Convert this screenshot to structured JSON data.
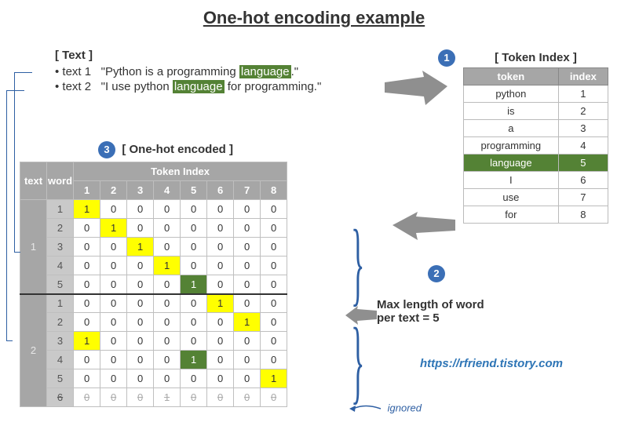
{
  "title": "One-hot encoding example",
  "text": {
    "heading": "[ Text ]",
    "line1_label": "text 1",
    "line1_pre": "\"Python is a programming ",
    "line1_hl": "language",
    "line1_post": ".\"",
    "line2_label": "text 2",
    "line2_pre": "\"I use python ",
    "line2_hl": "language",
    "line2_post": " for programming.\""
  },
  "steps": {
    "s1": "1",
    "s2": "2",
    "s3": "3"
  },
  "token_index": {
    "heading": "[ Token Index ]",
    "columns": [
      "token",
      "index"
    ],
    "rows": [
      {
        "token": "python",
        "index": "1",
        "hl": false
      },
      {
        "token": "is",
        "index": "2",
        "hl": false
      },
      {
        "token": "a",
        "index": "3",
        "hl": false
      },
      {
        "token": "programming",
        "index": "4",
        "hl": false
      },
      {
        "token": "language",
        "index": "5",
        "hl": true
      },
      {
        "token": "I",
        "index": "6",
        "hl": false
      },
      {
        "token": "use",
        "index": "7",
        "hl": false
      },
      {
        "token": "for",
        "index": "8",
        "hl": false
      }
    ]
  },
  "onehot": {
    "heading": "[ One-hot encoded ]",
    "colgroup_label": "Token Index",
    "row_headers": [
      "text",
      "word"
    ],
    "col_indices": [
      "1",
      "2",
      "3",
      "4",
      "5",
      "6",
      "7",
      "8"
    ],
    "groups": [
      {
        "text": "1",
        "rows": [
          {
            "word": "1",
            "vals": [
              "1",
              "0",
              "0",
              "0",
              "0",
              "0",
              "0",
              "0"
            ],
            "hi": 0,
            "color": "yellow"
          },
          {
            "word": "2",
            "vals": [
              "0",
              "1",
              "0",
              "0",
              "0",
              "0",
              "0",
              "0"
            ],
            "hi": 1,
            "color": "yellow"
          },
          {
            "word": "3",
            "vals": [
              "0",
              "0",
              "1",
              "0",
              "0",
              "0",
              "0",
              "0"
            ],
            "hi": 2,
            "color": "yellow"
          },
          {
            "word": "4",
            "vals": [
              "0",
              "0",
              "0",
              "1",
              "0",
              "0",
              "0",
              "0"
            ],
            "hi": 3,
            "color": "yellow"
          },
          {
            "word": "5",
            "vals": [
              "0",
              "0",
              "0",
              "0",
              "1",
              "0",
              "0",
              "0"
            ],
            "hi": 4,
            "color": "green"
          }
        ]
      },
      {
        "text": "2",
        "rows": [
          {
            "word": "1",
            "vals": [
              "0",
              "0",
              "0",
              "0",
              "0",
              "1",
              "0",
              "0"
            ],
            "hi": 5,
            "color": "yellow"
          },
          {
            "word": "2",
            "vals": [
              "0",
              "0",
              "0",
              "0",
              "0",
              "0",
              "1",
              "0"
            ],
            "hi": 6,
            "color": "yellow"
          },
          {
            "word": "3",
            "vals": [
              "1",
              "0",
              "0",
              "0",
              "0",
              "0",
              "0",
              "0"
            ],
            "hi": 0,
            "color": "yellow"
          },
          {
            "word": "4",
            "vals": [
              "0",
              "0",
              "0",
              "0",
              "1",
              "0",
              "0",
              "0"
            ],
            "hi": 4,
            "color": "green"
          },
          {
            "word": "5",
            "vals": [
              "0",
              "0",
              "0",
              "0",
              "0",
              "0",
              "0",
              "1"
            ],
            "hi": 7,
            "color": "yellow"
          },
          {
            "word": "6",
            "vals": [
              "0",
              "0",
              "0",
              "1",
              "0",
              "0",
              "0",
              "0"
            ],
            "hi": 3,
            "color": "none",
            "ignored": true
          }
        ]
      }
    ]
  },
  "max_len_label_1": "Max length of word",
  "max_len_label_2": "per text = 5",
  "link": "https://rfriend.tistory.com",
  "ignored_label": "ignored",
  "colors": {
    "header_bg": "#a6a6a6",
    "rowhdr_bg": "#c9c9c9",
    "yellow": "#ffff00",
    "green": "#548235",
    "circle": "#3b6fb6",
    "arrow": "#7f7f7f",
    "annot": "#2e5fa3",
    "link": "#2e75b6"
  }
}
